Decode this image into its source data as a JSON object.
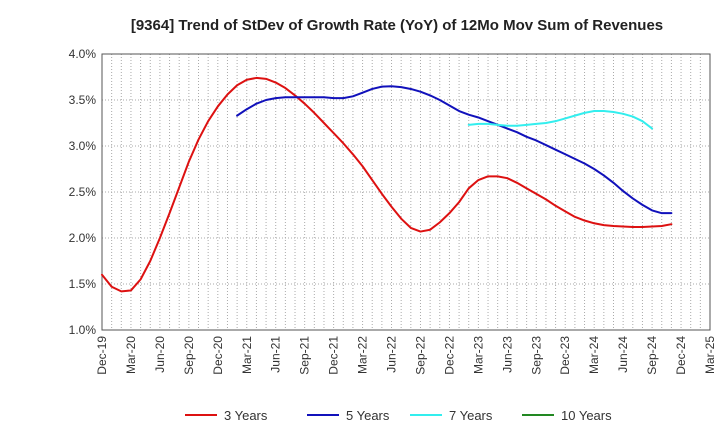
{
  "chart_data": {
    "type": "line",
    "title": "[9364]  Trend of StDev of Growth Rate (YoY) of 12Mo Mov Sum of Revenues",
    "xlabel": "",
    "ylabel": "",
    "x_start": "Dec-19",
    "x_ticks": [
      "Dec-19",
      "Mar-20",
      "Jun-20",
      "Sep-20",
      "Dec-20",
      "Mar-21",
      "Jun-21",
      "Sep-21",
      "Dec-21",
      "Mar-22",
      "Jun-22",
      "Sep-22",
      "Dec-22",
      "Mar-23",
      "Jun-23",
      "Sep-23",
      "Dec-23",
      "Mar-24",
      "Jun-24",
      "Sep-24",
      "Dec-24",
      "Mar-25"
    ],
    "ylim": [
      1.0,
      4.0
    ],
    "y_ticks": [
      "1.0%",
      "1.5%",
      "2.0%",
      "2.5%",
      "3.0%",
      "3.5%",
      "4.0%"
    ],
    "grid": true,
    "legend_position": "bottom",
    "series": [
      {
        "name": "3 Years",
        "color": "#dd1111",
        "start_index": 0,
        "values": [
          1.6,
          1.47,
          1.42,
          1.43,
          1.55,
          1.75,
          2.0,
          2.27,
          2.55,
          2.83,
          3.07,
          3.27,
          3.43,
          3.56,
          3.66,
          3.72,
          3.74,
          3.73,
          3.69,
          3.63,
          3.55,
          3.46,
          3.36,
          3.25,
          3.14,
          3.03,
          2.91,
          2.78,
          2.63,
          2.48,
          2.34,
          2.21,
          2.11,
          2.07,
          2.09,
          2.17,
          2.27,
          2.39,
          2.54,
          2.63,
          2.67,
          2.67,
          2.65,
          2.6,
          2.54,
          2.48,
          2.42,
          2.35,
          2.29,
          2.23,
          2.19,
          2.16,
          2.14,
          2.13,
          2.125,
          2.12,
          2.12,
          2.125,
          2.13,
          2.15
        ]
      },
      {
        "name": "5 Years",
        "color": "#1111bb",
        "start_index": 14,
        "values": [
          3.33,
          3.4,
          3.46,
          3.5,
          3.52,
          3.53,
          3.53,
          3.53,
          3.53,
          3.53,
          3.52,
          3.52,
          3.54,
          3.58,
          3.62,
          3.645,
          3.65,
          3.64,
          3.62,
          3.59,
          3.55,
          3.5,
          3.44,
          3.38,
          3.34,
          3.31,
          3.27,
          3.23,
          3.19,
          3.15,
          3.1,
          3.06,
          3.01,
          2.96,
          2.91,
          2.86,
          2.81,
          2.75,
          2.68,
          2.6,
          2.51,
          2.43,
          2.36,
          2.3,
          2.27,
          2.27
        ]
      },
      {
        "name": "7 Years",
        "color": "#33eeee",
        "start_index": 38,
        "values": [
          3.23,
          3.24,
          3.24,
          3.23,
          3.22,
          3.22,
          3.23,
          3.24,
          3.25,
          3.27,
          3.3,
          3.33,
          3.36,
          3.38,
          3.38,
          3.37,
          3.35,
          3.32,
          3.27,
          3.19
        ]
      },
      {
        "name": "10 Years",
        "color": "#228822",
        "start_index": 0,
        "values": []
      }
    ]
  }
}
